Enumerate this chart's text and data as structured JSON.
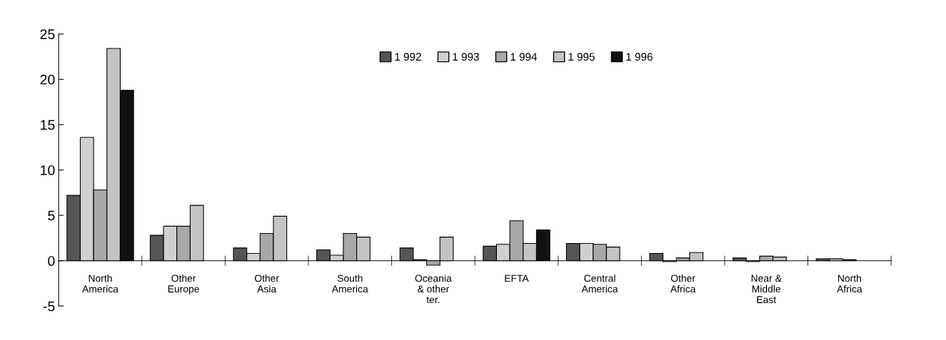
{
  "chart_data": {
    "type": "bar",
    "categories": [
      "North\nAmerica",
      "Other\nEurope",
      "Other\nAsia",
      "South\nAmerica",
      "Oceania\n& other\nter.",
      "EFTA",
      "Central\nAmerica",
      "Other\nAfrica",
      "Near &\nMiddle\nEast",
      "North\nAfrica"
    ],
    "series": [
      {
        "name": "1 992",
        "color": "#555555",
        "values": [
          7.2,
          2.8,
          1.4,
          1.2,
          1.4,
          1.6,
          1.9,
          0.8,
          0.3,
          0.2
        ]
      },
      {
        "name": "1 993",
        "color": "#d0d0d0",
        "values": [
          13.6,
          3.8,
          0.8,
          0.6,
          0.1,
          1.8,
          1.9,
          -0.1,
          -0.1,
          0.2
        ]
      },
      {
        "name": "1 994",
        "color": "#a8a8a8",
        "values": [
          7.8,
          3.8,
          3.0,
          3.0,
          -0.5,
          4.4,
          1.8,
          0.3,
          0.5,
          0.1
        ]
      },
      {
        "name": "1 995",
        "color": "#c4c4c4",
        "values": [
          23.4,
          6.1,
          4.9,
          2.6,
          2.6,
          1.9,
          1.5,
          0.9,
          0.4,
          null
        ]
      },
      {
        "name": "1 996",
        "color": "#111111",
        "values": [
          18.8,
          null,
          null,
          null,
          null,
          3.4,
          null,
          null,
          null,
          null
        ]
      }
    ],
    "ylim": [
      -5,
      25
    ],
    "yticks": [
      -5,
      0,
      5,
      10,
      15,
      20,
      25
    ],
    "grid": false,
    "legend": "top"
  }
}
